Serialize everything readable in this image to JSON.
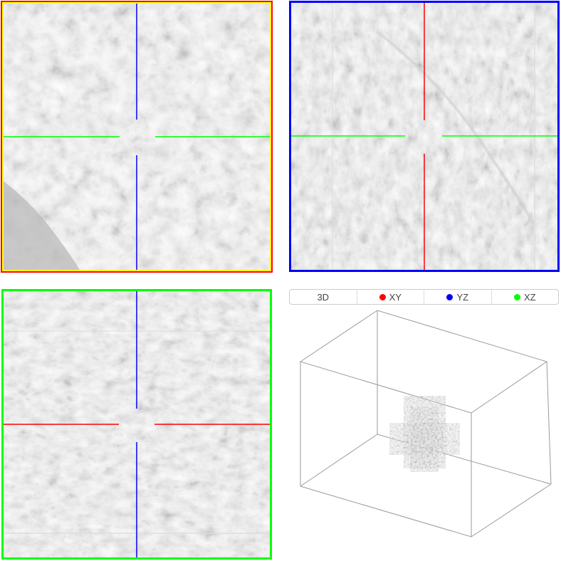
{
  "views": {
    "xy": {
      "name": "XY",
      "border_color": "#ff0000",
      "highlight_color": "#ffff00",
      "h_line_color": "#00ff00",
      "v_line_color": "#0000ff"
    },
    "yz": {
      "name": "YZ",
      "border_color": "#0000ff",
      "h_line_color": "#00ff00",
      "v_line_color": "#ff0000"
    },
    "xz": {
      "name": "XZ",
      "border_color": "#00ff00",
      "h_line_color": "#ff0000",
      "v_line_color": "#0000ff"
    }
  },
  "tabs": [
    {
      "label": "3D",
      "dot_color": null
    },
    {
      "label": "XY",
      "dot_color": "#ff0000"
    },
    {
      "label": "YZ",
      "dot_color": "#0000ff"
    },
    {
      "label": "XZ",
      "dot_color": "#00ff00"
    }
  ],
  "volume_outline_color": "#9a9a9a"
}
